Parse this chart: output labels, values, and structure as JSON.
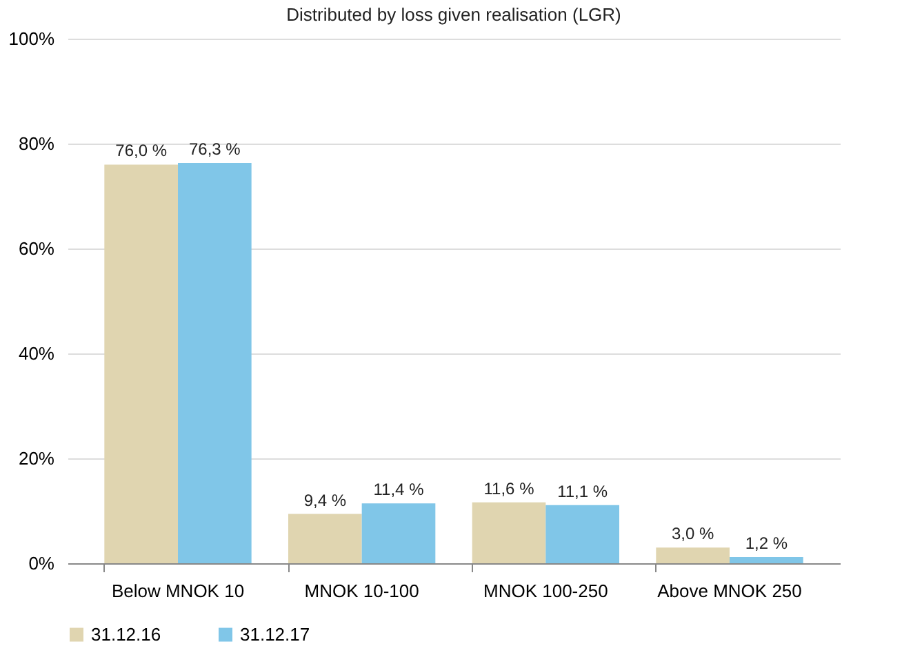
{
  "chart_data": {
    "type": "bar",
    "title": "Distributed by loss given realisation (LGR)",
    "categories": [
      "Below MNOK 10",
      "MNOK 10-100",
      "MNOK 100-250",
      "Above MNOK 250"
    ],
    "series": [
      {
        "name": "31.12.16",
        "color": "#e0d5b0",
        "values": [
          76.0,
          9.4,
          11.6,
          3.0
        ],
        "value_labels": [
          "76,0 %",
          "9,4 %",
          "11,6 %",
          "3,0 %"
        ]
      },
      {
        "name": "31.12.17",
        "color": "#80c6e8",
        "values": [
          76.3,
          11.4,
          11.1,
          1.2
        ],
        "value_labels": [
          "76,3 %",
          "11,4 %",
          "11,1 %",
          "1,2 %"
        ]
      }
    ],
    "ylim": [
      0,
      100
    ],
    "yticks": [
      {
        "value": 0,
        "label": "0%"
      },
      {
        "value": 20,
        "label": "20%"
      },
      {
        "value": 40,
        "label": "40%"
      },
      {
        "value": 60,
        "label": "60%"
      },
      {
        "value": 80,
        "label": "80%"
      },
      {
        "value": 100,
        "label": "100%"
      }
    ],
    "grid": "y",
    "legend": "bottom"
  }
}
